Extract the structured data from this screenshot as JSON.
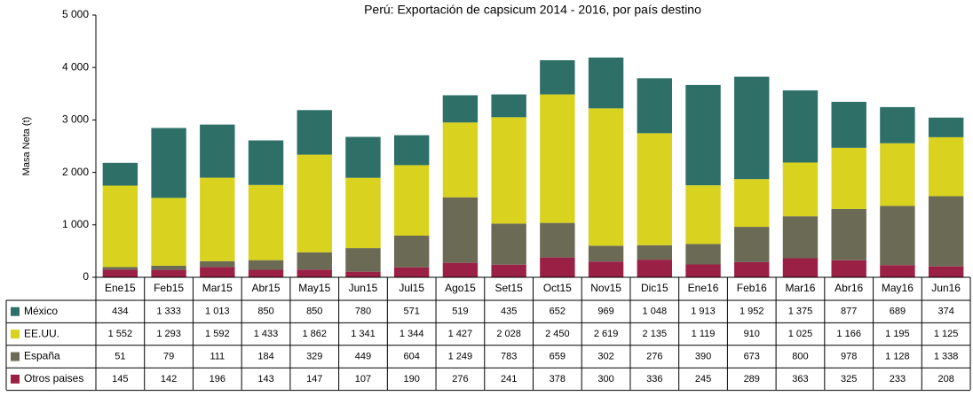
{
  "chart_data": {
    "type": "bar",
    "stacked": true,
    "title": "Perú: Exportación de capsicum 2014 - 2016, por país destino",
    "y_label": "Masa Neta (t)",
    "categories": [
      "Ene15",
      "Feb15",
      "Mar15",
      "Abr15",
      "May15",
      "Jun15",
      "Jul15",
      "Ago15",
      "Set15",
      "Oct15",
      "Nov15",
      "Dic15",
      "Ene16",
      "Feb16",
      "Mar16",
      "Abr16",
      "May16",
      "Jun16"
    ],
    "ylim": [
      0,
      5000
    ],
    "yticks": [
      0,
      {
        "value": 1000,
        "label": "1 000"
      },
      {
        "value": 2000,
        "label": "2 000"
      },
      {
        "value": 3000,
        "label": "3 000"
      },
      {
        "value": 4000,
        "label": "4 000"
      },
      {
        "value": 5000,
        "label": "5 000"
      }
    ],
    "series": [
      {
        "name": "México",
        "color": "#2e7068",
        "values": [
          434,
          1333,
          1013,
          850,
          850,
          780,
          571,
          519,
          435,
          652,
          969,
          1048,
          1913,
          1952,
          1375,
          877,
          689,
          374
        ],
        "value_labels": [
          "434",
          "1 333",
          "1 013",
          "850",
          "850",
          "780",
          "571",
          "519",
          "435",
          "652",
          "969",
          "1 048",
          "1 913",
          "1 952",
          "1 375",
          "877",
          "689",
          "374"
        ]
      },
      {
        "name": "EE.UU.",
        "color": "#d9d21f",
        "values": [
          1552,
          1293,
          1592,
          1433,
          1862,
          1341,
          1344,
          1427,
          2028,
          2450,
          2619,
          2135,
          1119,
          910,
          1025,
          1166,
          1195,
          1125
        ],
        "value_labels": [
          "1 552",
          "1 293",
          "1 592",
          "1 433",
          "1 862",
          "1 341",
          "1 344",
          "1 427",
          "2 028",
          "2 450",
          "2 619",
          "2 135",
          "1 119",
          "910",
          "1 025",
          "1 166",
          "1 195",
          "1 125"
        ]
      },
      {
        "name": "España",
        "color": "#6b6b55",
        "values": [
          51,
          79,
          111,
          184,
          329,
          449,
          604,
          1249,
          783,
          659,
          302,
          276,
          390,
          673,
          800,
          978,
          1128,
          1338
        ],
        "value_labels": [
          "51",
          "79",
          "111",
          "184",
          "329",
          "449",
          "604",
          "1 249",
          "783",
          "659",
          "302",
          "276",
          "390",
          "673",
          "800",
          "978",
          "1 128",
          "1 338"
        ]
      },
      {
        "name": "Otros paises",
        "color": "#9b2046",
        "values": [
          145,
          142,
          196,
          143,
          147,
          107,
          190,
          276,
          241,
          378,
          300,
          336,
          245,
          289,
          363,
          325,
          233,
          208
        ],
        "value_labels": [
          "145",
          "142",
          "196",
          "143",
          "147",
          "107",
          "190",
          "276",
          "241",
          "378",
          "300",
          "336",
          "245",
          "289",
          "363",
          "325",
          "233",
          "208"
        ]
      }
    ]
  }
}
